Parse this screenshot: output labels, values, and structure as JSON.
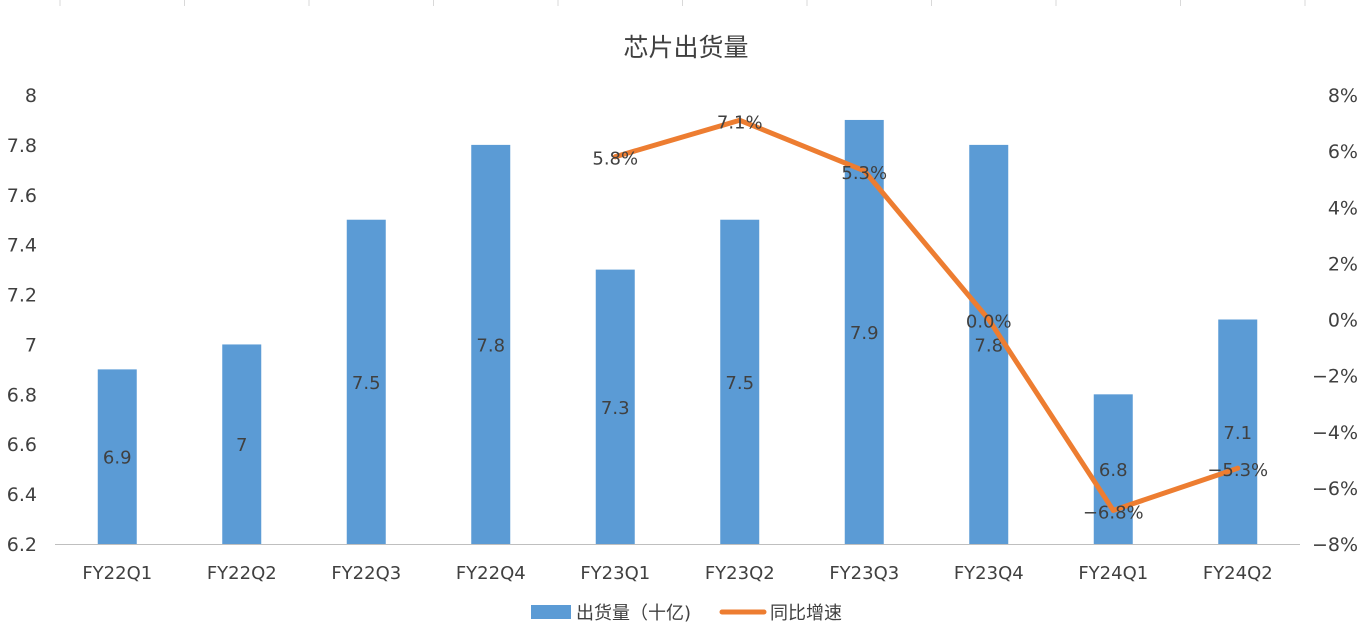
{
  "chart_data": {
    "type": "bar",
    "title": "芯片出货量",
    "categories": [
      "FY22Q1",
      "FY22Q2",
      "FY22Q3",
      "FY22Q4",
      "FY23Q1",
      "FY23Q2",
      "FY23Q3",
      "FY23Q4",
      "FY24Q1",
      "FY24Q2"
    ],
    "series": [
      {
        "name": "出货量（十亿)",
        "type": "bar",
        "axis": "left",
        "color": "#5b9bd5",
        "values": [
          6.9,
          7,
          7.5,
          7.8,
          7.3,
          7.5,
          7.9,
          7.8,
          6.8,
          7.1
        ],
        "labels": [
          "6.9",
          "7",
          "7.5",
          "7.8",
          "7.3",
          "7.5",
          "7.9",
          "7.8",
          "6.8",
          "7.1"
        ]
      },
      {
        "name": "同比增速",
        "type": "line",
        "axis": "right",
        "color": "#ed7d31",
        "values": [
          null,
          null,
          null,
          null,
          5.8,
          7.1,
          5.3,
          0.0,
          -6.8,
          -5.3
        ],
        "labels": [
          "",
          "",
          "",
          "",
          "5.8%",
          "7.1%",
          "5.3%",
          "0.0%",
          "−6.8%",
          "−5.3%"
        ]
      }
    ],
    "y_left": {
      "min": 6.2,
      "max": 8,
      "step": 0.2,
      "tick_labels": [
        "6.2",
        "6.4",
        "6.6",
        "6.8",
        "7",
        "7.2",
        "7.4",
        "7.6",
        "7.8",
        "8"
      ]
    },
    "y_right": {
      "min": -8,
      "max": 8,
      "step": 2,
      "tick_labels": [
        "−8%",
        "−6%",
        "−4%",
        "−2%",
        "0%",
        "2%",
        "4%",
        "6%",
        "8%"
      ]
    },
    "grid": false,
    "legend": "bottom"
  }
}
